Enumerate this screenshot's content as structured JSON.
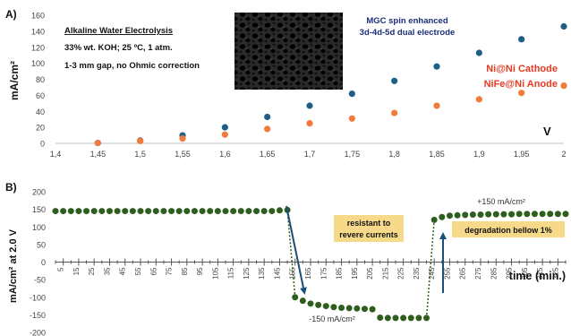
{
  "panel_a": {
    "panel_label": "A)",
    "notes": [
      "Alkaline Water Electrolysis",
      "33% wt. KOH; 25 ºC, 1 atm.",
      "1-3 mm gap, no Ohmic correction"
    ],
    "electrode_caption": [
      "MGC spin enhanced",
      "3d-4d-5d dual electrode"
    ],
    "photo_alt": "electrode foam photo",
    "colors": {
      "cathode": "#1f5f87",
      "anode": "#f07b3a",
      "label_red": "#e53a24",
      "caption_blue": "#1b2f7a"
    }
  },
  "panel_b": {
    "panel_label": "B)",
    "callouts": [
      "resistant to",
      "revere currents",
      "degradation bellow 1%"
    ],
    "annotations": [
      "+150 mA/cm²",
      "-150 mA/cm²"
    ],
    "colors": {
      "points": "#2e5e1d",
      "callout_fill": "#f7d98a",
      "arrow": "#1c4e7a"
    }
  },
  "chart_data": [
    {
      "type": "scatter",
      "xlabel": "V",
      "ylabel": "mA/cm²",
      "xlim": [
        1.4,
        2.0
      ],
      "ylim": [
        0,
        160
      ],
      "x_ticks": [
        "1,4",
        "1,45",
        "1,5",
        "1,55",
        "1,6",
        "1,65",
        "1,7",
        "1,75",
        "1,8",
        "1,85",
        "1,9",
        "1,95",
        "2"
      ],
      "y_ticks": [
        "0",
        "20",
        "40",
        "60",
        "80",
        "100",
        "120",
        "140",
        "160"
      ],
      "legend": [
        "Ni@Ni Cathode",
        "NiFe@Ni Anode"
      ],
      "grid": false,
      "series": [
        {
          "name": "Ni@Ni Cathode",
          "x": [
            1.45,
            1.5,
            1.55,
            1.6,
            1.65,
            1.7,
            1.75,
            1.8,
            1.85,
            1.9,
            1.95,
            2.0
          ],
          "y": [
            0.5,
            3.5,
            10,
            20,
            33,
            47,
            62,
            78,
            96,
            113,
            130,
            146
          ]
        },
        {
          "name": "NiFe@Ni Anode",
          "x": [
            1.45,
            1.5,
            1.55,
            1.6,
            1.65,
            1.7,
            1.75,
            1.8,
            1.85,
            1.9,
            1.95,
            2.0
          ],
          "y": [
            0.5,
            3,
            6,
            11,
            18,
            25,
            31,
            38,
            47,
            55,
            63,
            72
          ]
        }
      ]
    },
    {
      "type": "scatter",
      "xlabel": "time (min.)",
      "ylabel": "mA/cm² at 2.0 V",
      "xlim": [
        0,
        330
      ],
      "ylim": [
        -200,
        200
      ],
      "x_ticks": [
        "5",
        "15",
        "25",
        "35",
        "45",
        "55",
        "65",
        "75",
        "85",
        "95",
        "105",
        "115",
        "125",
        "135",
        "145",
        "155",
        "165",
        "175",
        "185",
        "195",
        "205",
        "215",
        "225",
        "235",
        "245",
        "255",
        "265",
        "275",
        "285",
        "295",
        "305",
        "315",
        "325"
      ],
      "y_ticks": [
        "200",
        "150",
        "100",
        "50",
        "0",
        "-50",
        "-100",
        "-150",
        "-200"
      ],
      "grid": false,
      "series": [
        {
          "name": "",
          "x": [
            0,
            5,
            10,
            15,
            20,
            25,
            30,
            35,
            40,
            45,
            50,
            55,
            60,
            65,
            70,
            75,
            80,
            85,
            90,
            95,
            100,
            105,
            110,
            115,
            120,
            125,
            130,
            135,
            140,
            145,
            150,
            155,
            160,
            165,
            170,
            175,
            180,
            185,
            190,
            195,
            200,
            205,
            210,
            215,
            220,
            225,
            230,
            235,
            240,
            245,
            250,
            255,
            260,
            265,
            270,
            275,
            280,
            285,
            290,
            295,
            300,
            305,
            310,
            315,
            320,
            325,
            330
          ],
          "y": [
            145,
            145,
            145,
            145,
            145,
            145,
            145,
            145,
            145,
            145,
            145,
            145,
            145,
            145,
            145,
            145,
            145,
            145,
            145,
            145,
            145,
            145,
            145,
            145,
            145,
            145,
            145,
            145,
            145,
            147,
            148,
            -100,
            -110,
            -118,
            -122,
            -125,
            -128,
            -130,
            -131,
            -132,
            -133,
            -134,
            -158,
            -159,
            -159,
            -159,
            -159,
            -159,
            -159,
            120,
            128,
            132,
            133,
            134,
            135,
            135,
            136,
            136,
            136,
            136,
            137,
            137,
            137,
            137,
            137,
            137,
            137
          ]
        }
      ]
    }
  ]
}
